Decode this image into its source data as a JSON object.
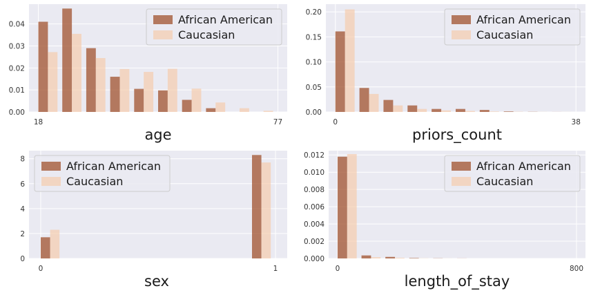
{
  "colors": {
    "african_american": "#a0522d",
    "caucasian": "#f6c9a8",
    "panel_bg": "#eaeaf2",
    "grid": "#ffffff"
  },
  "chart_data": [
    {
      "type": "bar",
      "xlabel": "age",
      "legend": "top-right",
      "grid": true,
      "ylim": [
        0,
        0.049
      ],
      "yticks": [
        "0.00",
        "0.01",
        "0.02",
        "0.03",
        "0.04"
      ],
      "ytick_values": [
        0,
        0.01,
        0.02,
        0.03,
        0.04
      ],
      "xticks": [
        "18",
        "77"
      ],
      "xtick_values": [
        18,
        77
      ],
      "xlim": [
        15.7,
        79.3
      ],
      "bin_edges": [
        18,
        23.9,
        29.8,
        35.7,
        41.6,
        47.5,
        53.4,
        59.3,
        65.2,
        71.1,
        77
      ],
      "series": [
        {
          "name": "African American",
          "values": [
            0.041,
            0.047,
            0.029,
            0.016,
            0.0105,
            0.0098,
            0.0055,
            0.0017,
            0.0,
            0.0
          ]
        },
        {
          "name": "Caucasian",
          "values": [
            0.0272,
            0.0355,
            0.0245,
            0.0195,
            0.0182,
            0.0196,
            0.0106,
            0.0043,
            0.0017,
            0.0005
          ]
        }
      ]
    },
    {
      "type": "bar",
      "xlabel": "priors_count",
      "legend": "top-right",
      "grid": true,
      "ylim": [
        0,
        0.2155
      ],
      "yticks": [
        "0.00",
        "0.05",
        "0.10",
        "0.15",
        "0.20"
      ],
      "ytick_values": [
        0,
        0.05,
        0.1,
        0.15,
        0.2
      ],
      "xticks": [
        "0",
        "38"
      ],
      "xtick_values": [
        0,
        38
      ],
      "xlim": [
        -1.5,
        39.5
      ],
      "bin_edges": [
        0,
        3.8,
        7.6,
        11.4,
        15.2,
        19,
        22.8,
        26.6,
        30.4,
        34.2,
        38
      ],
      "series": [
        {
          "name": "African American",
          "values": [
            0.161,
            0.048,
            0.024,
            0.013,
            0.006,
            0.006,
            0.004,
            0.001,
            0.0003,
            0.0001
          ]
        },
        {
          "name": "Caucasian",
          "values": [
            0.205,
            0.036,
            0.013,
            0.006,
            0.003,
            0.002,
            0.001,
            0.0005,
            0.0002,
            0.0001
          ]
        }
      ]
    },
    {
      "type": "bar",
      "xlabel": "sex",
      "legend": "top-left",
      "grid": true,
      "ylim": [
        0,
        8.65
      ],
      "yticks": [
        "0",
        "2",
        "4",
        "6",
        "8"
      ],
      "ytick_values": [
        0,
        2,
        4,
        6,
        8
      ],
      "xticks": [
        "0",
        "1"
      ],
      "xtick_values": [
        0,
        1
      ],
      "xlim": [
        -0.05,
        1.05
      ],
      "bin_edges": [
        0,
        0.1,
        0.2,
        0.3,
        0.4,
        0.5,
        0.6,
        0.7,
        0.8,
        0.9,
        1
      ],
      "series": [
        {
          "name": "African American",
          "values": [
            1.7,
            0,
            0,
            0,
            0,
            0,
            0,
            0,
            0,
            8.3
          ]
        },
        {
          "name": "Caucasian",
          "values": [
            2.3,
            0,
            0,
            0,
            0,
            0,
            0,
            0,
            0,
            7.7
          ]
        }
      ]
    },
    {
      "type": "bar",
      "xlabel": "length_of_stay",
      "legend": "top-right",
      "grid": true,
      "ylim": [
        0,
        0.0125
      ],
      "yticks": [
        "0.000",
        "0.002",
        "0.004",
        "0.006",
        "0.008",
        "0.010",
        "0.012"
      ],
      "ytick_values": [
        0,
        0.002,
        0.004,
        0.006,
        0.008,
        0.01,
        0.012
      ],
      "xticks": [
        "0",
        "800"
      ],
      "xtick_values": [
        0,
        800
      ],
      "xlim": [
        -30,
        830
      ],
      "bin_edges": [
        0,
        80,
        160,
        240,
        320,
        400,
        480,
        560,
        640,
        720,
        800
      ],
      "series": [
        {
          "name": "African American",
          "values": [
            0.0118,
            0.00035,
            0.00018,
            5e-05,
            2e-05,
            1e-05,
            0,
            0,
            0,
            0
          ]
        },
        {
          "name": "Caucasian",
          "values": [
            0.0121,
            0.00015,
            8e-05,
            2e-05,
            1e-05,
            0,
            0,
            0,
            0,
            0
          ]
        }
      ]
    }
  ]
}
